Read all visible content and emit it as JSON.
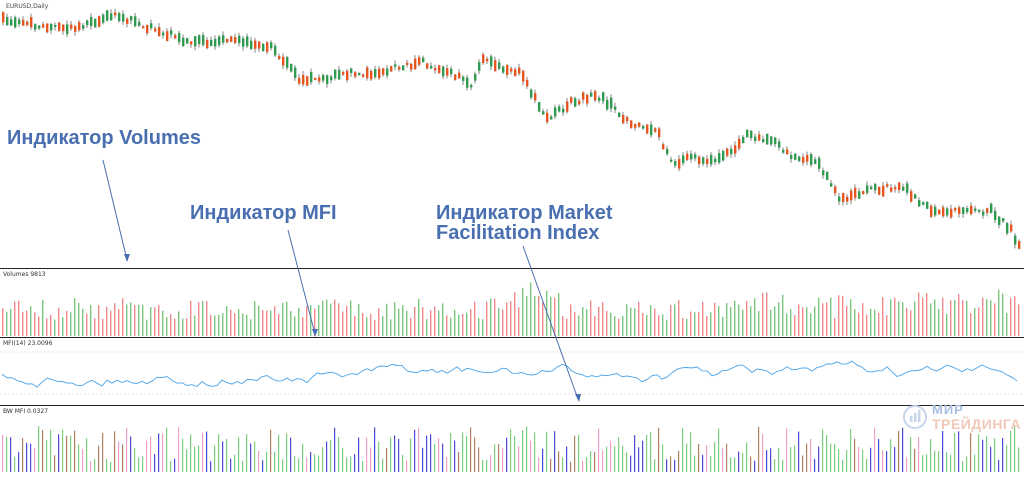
{
  "window": {
    "symbol": "EURUSD,Daily"
  },
  "annotations": {
    "volumes": "Индикатор Volumes",
    "mfi": "Индикатор MFI",
    "mfix_line1": "Индикатор Market",
    "mfix_line2": "Facilitation Index"
  },
  "panels": {
    "volumes": {
      "label": "Volumes 9813"
    },
    "mfi": {
      "label": "MFI(14) 23.0096"
    },
    "bwmfi": {
      "label": "BW MFI 0.0327"
    }
  },
  "watermark": {
    "line1": "МИР",
    "line2": "ТРЕЙДИНГА"
  },
  "colors": {
    "bull": "#2e9b4e",
    "bear": "#e8541e",
    "vol_up": "#7cc57c",
    "vol_down": "#f08a8a",
    "mfi_line": "#4aa3e8",
    "bw_green": "#7ccf7c",
    "bw_blue": "#4a4ad8",
    "bw_pink": "#f0a0c8",
    "bw_brown": "#b08060",
    "annotation": "#4a6fb0"
  }
}
